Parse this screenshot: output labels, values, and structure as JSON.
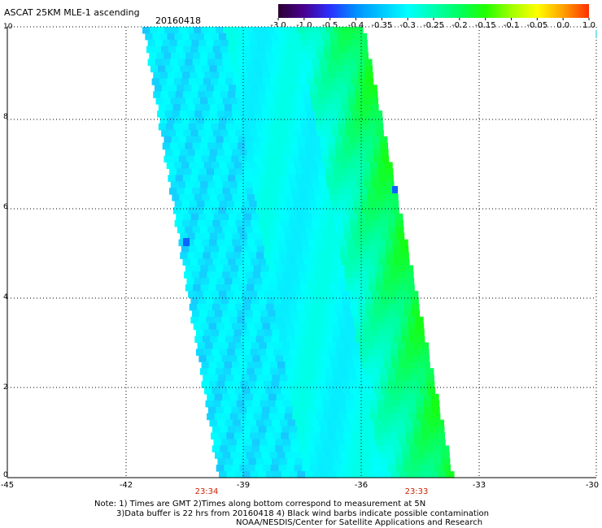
{
  "header": {
    "title": "ASCAT 25KM MLE-1 ascending",
    "date": "20160418"
  },
  "colorbar": {
    "ticks": [
      "-3.0",
      "-1.0",
      "-0.5",
      "-0.4",
      "-0.35",
      "-0.3",
      "-0.25",
      "-0.2",
      "-0.15",
      "-0.1",
      "-0.05",
      "0.0",
      "1.0"
    ],
    "colors": [
      "#2a0030",
      "#4a0090",
      "#2a30ff",
      "#0090ff",
      "#00c8ff",
      "#00ffff",
      "#00ffb0",
      "#00ff60",
      "#20ff00",
      "#a0ff00",
      "#ffff00",
      "#ffa000",
      "#ff3000"
    ]
  },
  "map": {
    "x_ticks": [
      "-45",
      "-42",
      "-39",
      "-36",
      "-33",
      "-30"
    ],
    "y_ticks": [
      "0",
      "2",
      "4",
      "6",
      "8",
      "10"
    ],
    "pass_times": [
      "23:34",
      "23:33"
    ],
    "field_colors": {
      "low": "#1eb4ff",
      "mid": "#00ffff",
      "high": "#00ff9a",
      "peak": "#14ff14",
      "outlier_blue": "#0a64ff"
    }
  },
  "notes": {
    "line1": "Note: 1) Times are GMT 2)Times along bottom correspond to measurement at 5N",
    "line2": "3)Data buffer is 22 hrs from 20160418 4) Black wind barbs indicate possible contamination",
    "line3": "NOAA/NESDIS/Center for Satellite Applications and Research"
  }
}
